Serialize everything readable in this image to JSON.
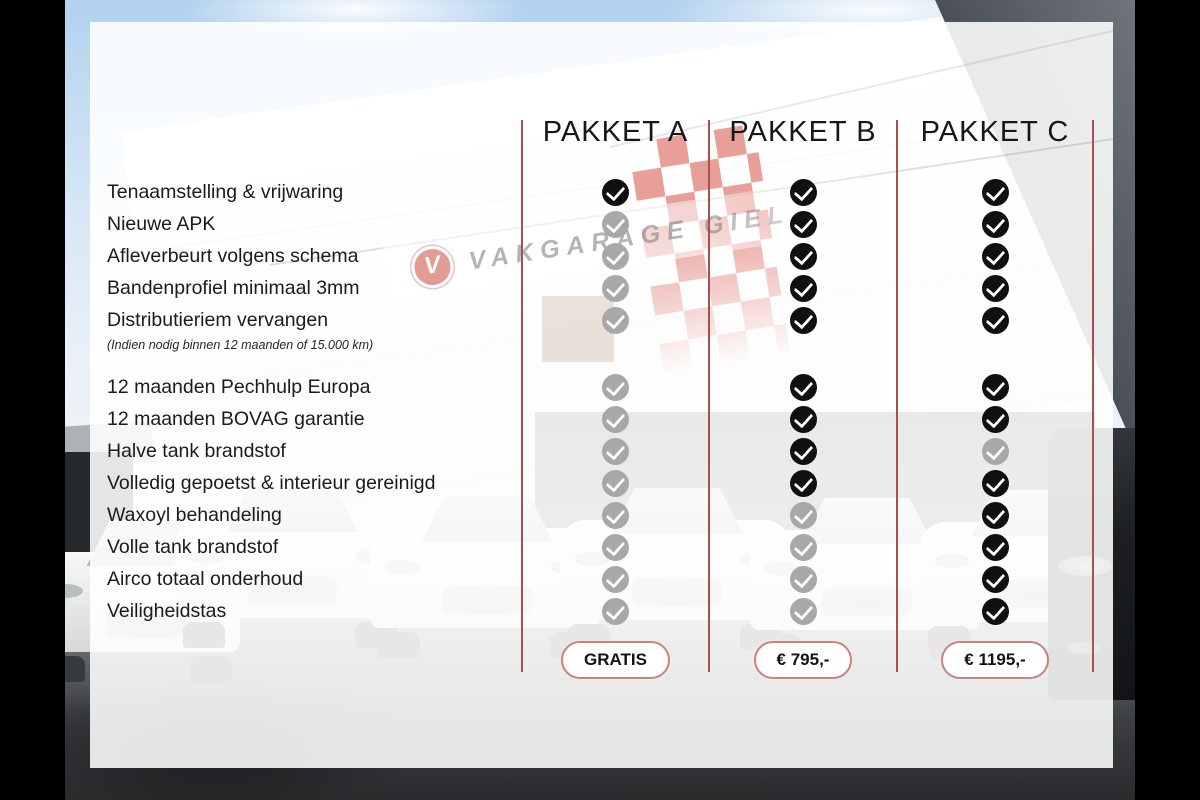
{
  "packages": {
    "columns": [
      {
        "id": "a",
        "label": "PAKKET A",
        "price": "GRATIS"
      },
      {
        "id": "b",
        "label": "PAKKET B",
        "price": "€ 795,-"
      },
      {
        "id": "c",
        "label": "PAKKET C",
        "price": "€ 1195,-"
      }
    ]
  },
  "features": [
    {
      "label": "Tenaamstelling & vrijwaring",
      "checks": [
        "included",
        "included",
        "included"
      ]
    },
    {
      "label": "Nieuwe APK",
      "checks": [
        "excluded",
        "included",
        "included"
      ]
    },
    {
      "label": "Afleverbeurt volgens schema",
      "checks": [
        "excluded",
        "included",
        "included"
      ]
    },
    {
      "label": "Bandenprofiel minimaal 3mm",
      "checks": [
        "excluded",
        "included",
        "included"
      ]
    },
    {
      "label": "Distributieriem vervangen",
      "note": "(Indien nodig binnen 12 maanden of 15.000 km)",
      "checks": [
        "excluded",
        "included",
        "included"
      ],
      "group_break_after": true
    },
    {
      "label": "12 maanden Pechhulp Europa",
      "checks": [
        "excluded",
        "included",
        "included"
      ]
    },
    {
      "label": "12 maanden BOVAG garantie",
      "checks": [
        "excluded",
        "included",
        "included"
      ]
    },
    {
      "label": "Halve tank brandstof",
      "checks": [
        "excluded",
        "included",
        "excluded"
      ]
    },
    {
      "label": "Volledig gepoetst & interieur gereinigd",
      "checks": [
        "excluded",
        "included",
        "included"
      ]
    },
    {
      "label": "Waxoyl behandeling",
      "checks": [
        "excluded",
        "excluded",
        "included"
      ]
    },
    {
      "label": "Volle tank brandstof",
      "checks": [
        "excluded",
        "excluded",
        "included"
      ]
    },
    {
      "label": "Airco totaal onderhoud",
      "checks": [
        "excluded",
        "excluded",
        "included"
      ]
    },
    {
      "label": "Veiligheidstas",
      "checks": [
        "excluded",
        "excluded",
        "included"
      ]
    }
  ],
  "background": {
    "dealer_banner_text": "VAKGARAGE GIEL",
    "logo_letter": "V"
  },
  "colors": {
    "divider_red": "#a5524f",
    "check_included": "#101010",
    "check_excluded": "#a8a8a8",
    "button_border": "#c9827e",
    "flag_red": "#d34237"
  }
}
